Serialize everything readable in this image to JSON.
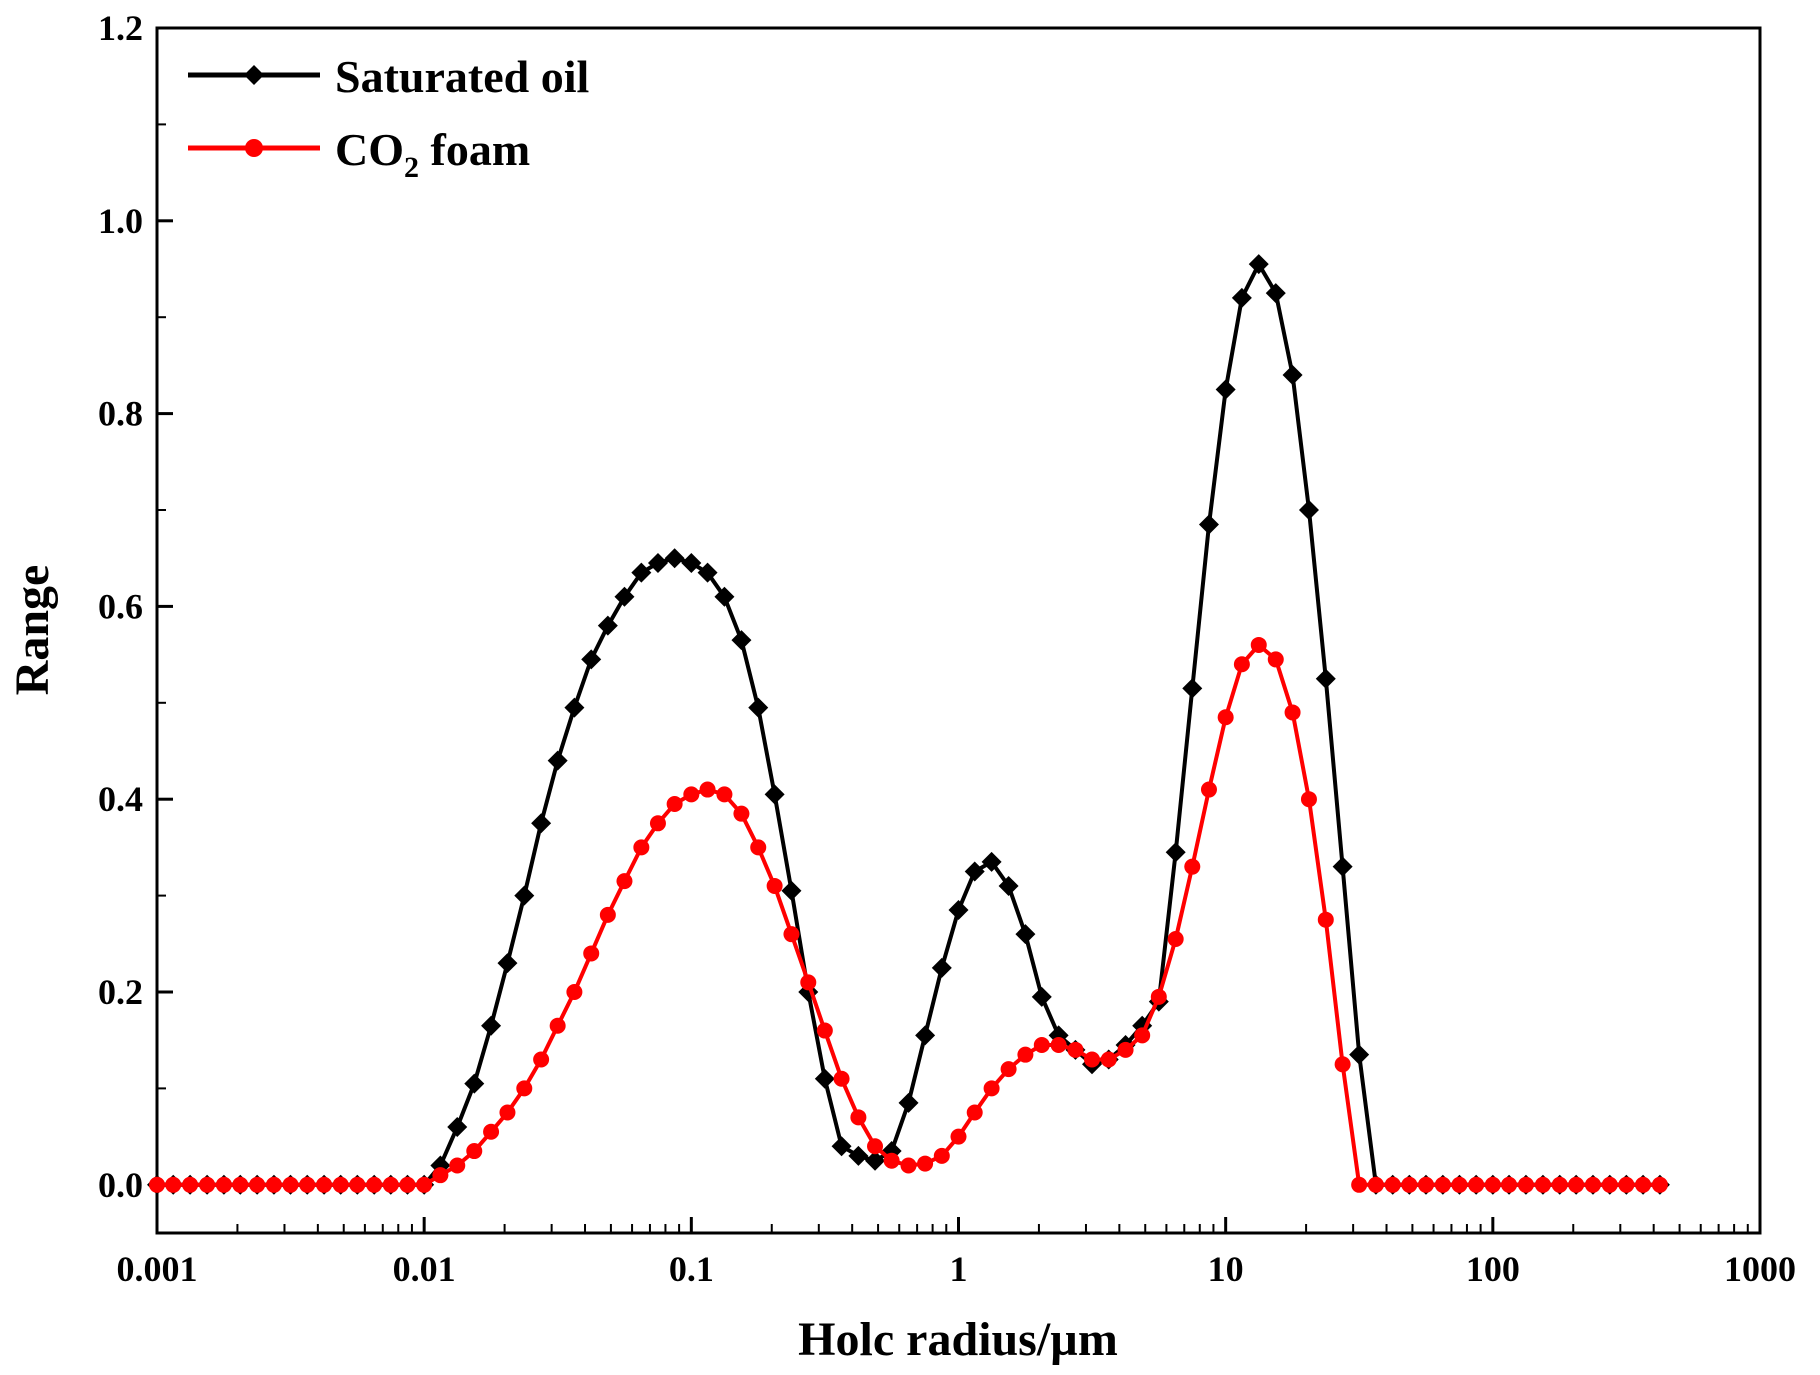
{
  "chart_data": {
    "type": "line",
    "title": "",
    "xlabel": "Holc radius/µm",
    "ylabel": "Range",
    "xscale": "log",
    "xlim": [
      0.001,
      1000
    ],
    "ylim": [
      -0.05,
      1.2
    ],
    "xticks": [
      {
        "value": 0.001,
        "label": "0.001"
      },
      {
        "value": 0.01,
        "label": "0.01"
      },
      {
        "value": 0.1,
        "label": "0.1"
      },
      {
        "value": 1,
        "label": "1"
      },
      {
        "value": 10,
        "label": "10"
      },
      {
        "value": 100,
        "label": "100"
      },
      {
        "value": 1000,
        "label": "1000"
      }
    ],
    "yticks": [
      {
        "value": 0.0,
        "label": "0.0"
      },
      {
        "value": 0.2,
        "label": "0.2"
      },
      {
        "value": 0.4,
        "label": "0.4"
      },
      {
        "value": 0.6,
        "label": "0.6"
      },
      {
        "value": 0.8,
        "label": "0.8"
      },
      {
        "value": 1.0,
        "label": "1.0"
      },
      {
        "value": 1.2,
        "label": "1.2"
      }
    ],
    "legend_position": "top-left",
    "grid": false,
    "series": [
      {
        "name": "Saturated oil",
        "color": "#000000",
        "marker": "diamond",
        "x": [
          0.001,
          0.00115,
          0.00133,
          0.00154,
          0.00178,
          0.00205,
          0.00237,
          0.00274,
          0.00316,
          0.00365,
          0.00422,
          0.00487,
          0.00562,
          0.0065,
          0.0075,
          0.00866,
          0.01,
          0.0115,
          0.0133,
          0.0154,
          0.0178,
          0.0205,
          0.0237,
          0.0274,
          0.0316,
          0.0365,
          0.0422,
          0.0487,
          0.0562,
          0.065,
          0.075,
          0.0866,
          0.1,
          0.115,
          0.133,
          0.154,
          0.178,
          0.205,
          0.237,
          0.274,
          0.316,
          0.365,
          0.422,
          0.487,
          0.562,
          0.65,
          0.75,
          0.866,
          1.0,
          1.15,
          1.33,
          1.54,
          1.78,
          2.05,
          2.37,
          2.74,
          3.16,
          3.65,
          4.22,
          4.87,
          5.62,
          6.5,
          7.5,
          8.66,
          10.0,
          11.5,
          13.3,
          15.4,
          17.8,
          20.5,
          23.7,
          27.4,
          31.6,
          36.5,
          42.2,
          48.7,
          56.2,
          65.0,
          75.0,
          86.6,
          100,
          115,
          133,
          154,
          178,
          205,
          237,
          274,
          316,
          365,
          422
        ],
        "y": [
          0,
          0,
          0,
          0,
          0,
          0,
          0,
          0,
          0,
          0,
          0,
          0,
          0,
          0,
          0,
          0,
          0,
          0.02,
          0.06,
          0.105,
          0.165,
          0.23,
          0.3,
          0.375,
          0.44,
          0.495,
          0.545,
          0.58,
          0.61,
          0.635,
          0.645,
          0.65,
          0.645,
          0.635,
          0.61,
          0.565,
          0.495,
          0.405,
          0.305,
          0.2,
          0.11,
          0.04,
          0.03,
          0.025,
          0.035,
          0.085,
          0.155,
          0.225,
          0.285,
          0.325,
          0.335,
          0.31,
          0.26,
          0.195,
          0.155,
          0.14,
          0.125,
          0.13,
          0.145,
          0.165,
          0.19,
          0.345,
          0.515,
          0.685,
          0.825,
          0.92,
          0.955,
          0.925,
          0.84,
          0.7,
          0.525,
          0.33,
          0.135,
          0,
          0,
          0,
          0,
          0,
          0,
          0,
          0,
          0,
          0,
          0,
          0,
          0,
          0,
          0,
          0,
          0,
          0
        ]
      },
      {
        "name": "CO2 foam",
        "name_main": "CO",
        "name_sub": "2",
        "name_rest": " foam",
        "color": "#ff0000",
        "marker": "circle",
        "x": [
          0.001,
          0.00115,
          0.00133,
          0.00154,
          0.00178,
          0.00205,
          0.00237,
          0.00274,
          0.00316,
          0.00365,
          0.00422,
          0.00487,
          0.00562,
          0.0065,
          0.0075,
          0.00866,
          0.01,
          0.0115,
          0.0133,
          0.0154,
          0.0178,
          0.0205,
          0.0237,
          0.0274,
          0.0316,
          0.0365,
          0.0422,
          0.0487,
          0.0562,
          0.065,
          0.075,
          0.0866,
          0.1,
          0.115,
          0.133,
          0.154,
          0.178,
          0.205,
          0.237,
          0.274,
          0.316,
          0.365,
          0.422,
          0.487,
          0.562,
          0.65,
          0.75,
          0.866,
          1.0,
          1.15,
          1.33,
          1.54,
          1.78,
          2.05,
          2.37,
          2.74,
          3.16,
          3.65,
          4.22,
          4.87,
          5.62,
          6.5,
          7.5,
          8.66,
          10.0,
          11.5,
          13.3,
          15.4,
          17.8,
          20.5,
          23.7,
          27.4,
          31.6,
          36.5,
          42.2,
          48.7,
          56.2,
          65.0,
          75.0,
          86.6,
          100,
          115,
          133,
          154,
          178,
          205,
          237,
          274,
          316,
          365,
          422
        ],
        "y": [
          0,
          0,
          0,
          0,
          0,
          0,
          0,
          0,
          0,
          0,
          0,
          0,
          0,
          0,
          0,
          0,
          0,
          0.01,
          0.02,
          0.035,
          0.055,
          0.075,
          0.1,
          0.13,
          0.165,
          0.2,
          0.24,
          0.28,
          0.315,
          0.35,
          0.375,
          0.395,
          0.405,
          0.41,
          0.405,
          0.385,
          0.35,
          0.31,
          0.26,
          0.21,
          0.16,
          0.11,
          0.07,
          0.04,
          0.025,
          0.02,
          0.022,
          0.03,
          0.05,
          0.075,
          0.1,
          0.12,
          0.135,
          0.145,
          0.145,
          0.14,
          0.13,
          0.13,
          0.14,
          0.155,
          0.195,
          0.255,
          0.33,
          0.41,
          0.485,
          0.54,
          0.56,
          0.545,
          0.49,
          0.4,
          0.275,
          0.125,
          0,
          0,
          0,
          0,
          0,
          0,
          0,
          0,
          0,
          0,
          0,
          0,
          0,
          0,
          0,
          0,
          0,
          0,
          0
        ]
      }
    ]
  }
}
